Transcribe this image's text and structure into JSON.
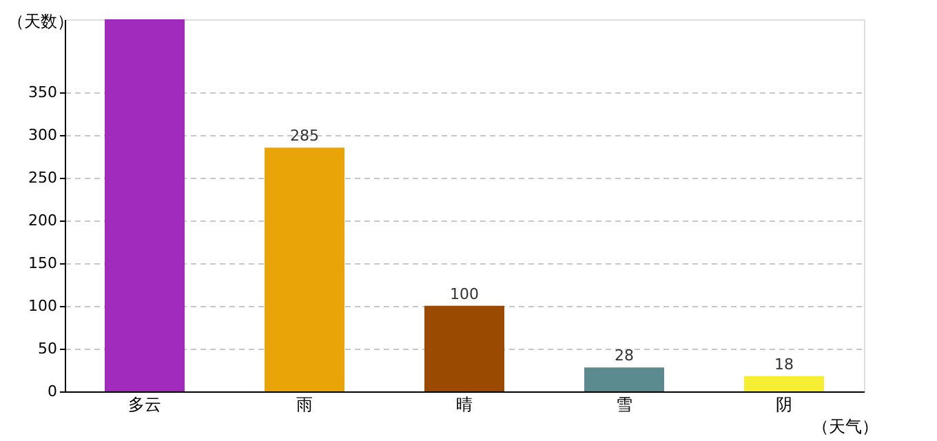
{
  "chart_data": {
    "type": "bar",
    "xlabel": "（天气）",
    "ylabel": "（天数）",
    "categories": [
      "多云",
      "雨",
      "晴",
      "雪",
      "阴"
    ],
    "values": [
      435,
      285,
      100,
      28,
      18
    ],
    "value_labels": [
      null,
      "285",
      "100",
      "28",
      "18"
    ],
    "colors": [
      "#a12bbd",
      "#e9a508",
      "#9b4a02",
      "#5b8a8f",
      "#f5ee33"
    ],
    "ylim": [
      0,
      435
    ],
    "yticks": [
      0,
      50,
      100,
      150,
      200,
      250,
      300,
      350
    ],
    "grid": "y"
  }
}
